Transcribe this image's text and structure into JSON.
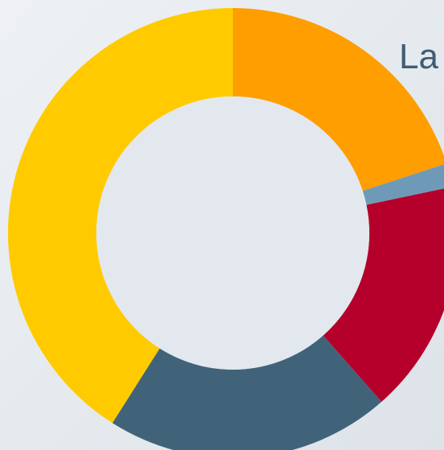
{
  "chart_data": {
    "type": "donut",
    "title": "La",
    "categories": [
      null,
      null,
      null,
      null,
      null
    ],
    "values": [
      20,
      1.7,
      16.8,
      20.5,
      41
    ],
    "colors": [
      "#ff9e00",
      "#6e9ab8",
      "#b5002b",
      "#41637a",
      "#ffcb00"
    ]
  }
}
